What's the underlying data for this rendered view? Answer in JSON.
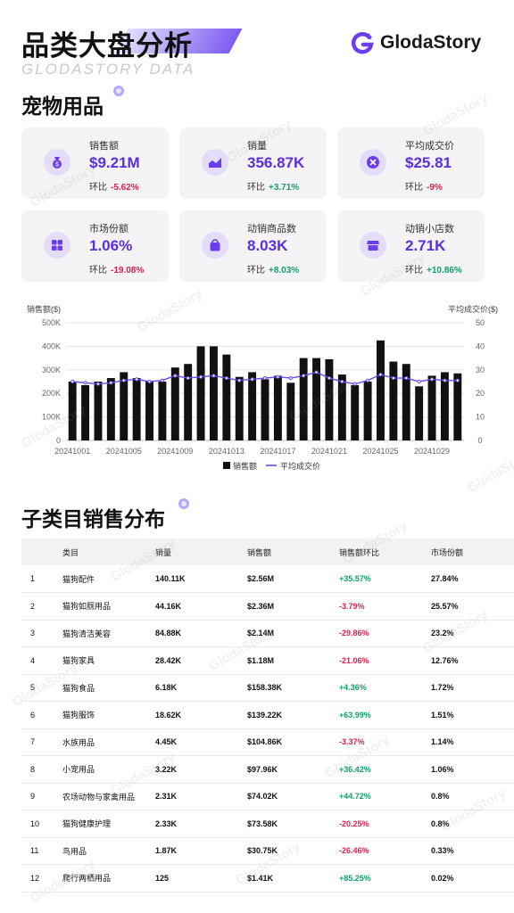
{
  "header": {
    "title": "品类大盘分析",
    "subtitle": "GLODASTORY DATA",
    "brand": "GlodaStory",
    "section_title": "宠物用品",
    "logo_icon": "glodastory-logo-icon",
    "accent_color": "#5b2fe0"
  },
  "cards": [
    {
      "label": "销售额",
      "value": "$9.21M",
      "change_label": "环比",
      "change": "-5.62%",
      "trend": "neg",
      "icon": "money-bag-icon"
    },
    {
      "label": "销量",
      "value": "356.87K",
      "change_label": "环比",
      "change": "+3.71%",
      "trend": "pos",
      "icon": "trend-chart-icon"
    },
    {
      "label": "平均成交价",
      "value": "$25.81",
      "change_label": "环比",
      "change": "-9%",
      "trend": "neg",
      "icon": "price-tag-icon"
    },
    {
      "label": "市场份额",
      "value": "1.06%",
      "change_label": "环比",
      "change": "-19.08%",
      "trend": "neg",
      "icon": "share-grid-icon"
    },
    {
      "label": "动销商品数",
      "value": "8.03K",
      "change_label": "环比",
      "change": "+8.03%",
      "trend": "pos",
      "icon": "shopping-bag-icon"
    },
    {
      "label": "动销小店数",
      "value": "2.71K",
      "change_label": "环比",
      "change": "+10.86%",
      "trend": "pos",
      "icon": "store-icon"
    }
  ],
  "chart_data": {
    "type": "bar",
    "left_axis_label": "销售额($)",
    "right_axis_label": "平均成交价($)",
    "y_ticks": [
      "0",
      "100K",
      "200K",
      "300K",
      "400K",
      "500K"
    ],
    "y2_ticks": [
      "0",
      "10",
      "20",
      "30",
      "40",
      "50"
    ],
    "ylim": [
      0,
      500000
    ],
    "y2lim": [
      0,
      50
    ],
    "x_tick_labels": [
      "20241001",
      "20241005",
      "20241009",
      "20241013",
      "20241017",
      "20241021",
      "20241025",
      "20241029"
    ],
    "categories": [
      "20241001",
      "20241002",
      "20241003",
      "20241004",
      "20241005",
      "20241006",
      "20241007",
      "20241008",
      "20241009",
      "20241010",
      "20241011",
      "20241012",
      "20241013",
      "20241014",
      "20241015",
      "20241016",
      "20241017",
      "20241018",
      "20241019",
      "20241020",
      "20241021",
      "20241022",
      "20241023",
      "20241024",
      "20241025",
      "20241026",
      "20241027",
      "20241028",
      "20241029",
      "20241030",
      "20241031"
    ],
    "series": [
      {
        "name": "销售额",
        "kind": "bar",
        "axis": "left",
        "color": "#111111",
        "values": [
          250000,
          235000,
          250000,
          265000,
          290000,
          265000,
          250000,
          250000,
          310000,
          325000,
          400000,
          400000,
          365000,
          270000,
          290000,
          260000,
          275000,
          245000,
          350000,
          350000,
          345000,
          280000,
          235000,
          250000,
          425000,
          335000,
          325000,
          230000,
          275000,
          290000,
          285000
        ]
      },
      {
        "name": "平均成交价",
        "kind": "line",
        "axis": "right",
        "color": "#6a4be8",
        "values": [
          25,
          24.5,
          24,
          24.5,
          25.5,
          26,
          25,
          25.5,
          27.5,
          26.5,
          27,
          27.5,
          26.5,
          25.5,
          26,
          26.5,
          27,
          26.5,
          27.5,
          29,
          26.5,
          25,
          24,
          25.5,
          28,
          26.5,
          26.5,
          25,
          26,
          25.5,
          25.5
        ]
      }
    ],
    "legend": [
      "销售额",
      "平均成交价"
    ],
    "legend_position": "bottom",
    "grid": true
  },
  "table_section_title": "子类目销售分布",
  "table": {
    "headers": [
      "",
      "类目",
      "销量",
      "销售额",
      "销售额环比",
      "市场份额"
    ],
    "rows": [
      {
        "rank": "1",
        "category": "猫狗配件",
        "volume": "140.11K",
        "amount": "$2.56M",
        "change": "+35.57%",
        "trend": "pos",
        "share": "27.84%"
      },
      {
        "rank": "2",
        "category": "猫狗如厕用品",
        "volume": "44.16K",
        "amount": "$2.36M",
        "change": "-3.79%",
        "trend": "neg",
        "share": "25.57%"
      },
      {
        "rank": "3",
        "category": "猫狗清洁美容",
        "volume": "84.88K",
        "amount": "$2.14M",
        "change": "-29.86%",
        "trend": "neg",
        "share": "23.2%"
      },
      {
        "rank": "4",
        "category": "猫狗家具",
        "volume": "28.42K",
        "amount": "$1.18M",
        "change": "-21.06%",
        "trend": "neg",
        "share": "12.76%"
      },
      {
        "rank": "5",
        "category": "猫狗食品",
        "volume": "6.18K",
        "amount": "$158.38K",
        "change": "+4.36%",
        "trend": "pos",
        "share": "1.72%"
      },
      {
        "rank": "6",
        "category": "猫狗服饰",
        "volume": "18.62K",
        "amount": "$139.22K",
        "change": "+63.99%",
        "trend": "pos",
        "share": "1.51%"
      },
      {
        "rank": "7",
        "category": "水族用品",
        "volume": "4.45K",
        "amount": "$104.86K",
        "change": "-3.37%",
        "trend": "neg",
        "share": "1.14%"
      },
      {
        "rank": "8",
        "category": "小宠用品",
        "volume": "3.22K",
        "amount": "$97.96K",
        "change": "+36.42%",
        "trend": "pos",
        "share": "1.06%"
      },
      {
        "rank": "9",
        "category": "农场动物与家禽用品",
        "volume": "2.31K",
        "amount": "$74.02K",
        "change": "+44.72%",
        "trend": "pos",
        "share": "0.8%"
      },
      {
        "rank": "10",
        "category": "猫狗健康护理",
        "volume": "2.33K",
        "amount": "$73.58K",
        "change": "-20.25%",
        "trend": "neg",
        "share": "0.8%"
      },
      {
        "rank": "11",
        "category": "鸟用品",
        "volume": "1.87K",
        "amount": "$30.75K",
        "change": "-26.46%",
        "trend": "neg",
        "share": "0.33%"
      },
      {
        "rank": "12",
        "category": "爬行两栖用品",
        "volume": "125",
        "amount": "$1.41K",
        "change": "+85.25%",
        "trend": "pos",
        "share": "0.02%"
      }
    ]
  },
  "watermark": "GlodaStory"
}
